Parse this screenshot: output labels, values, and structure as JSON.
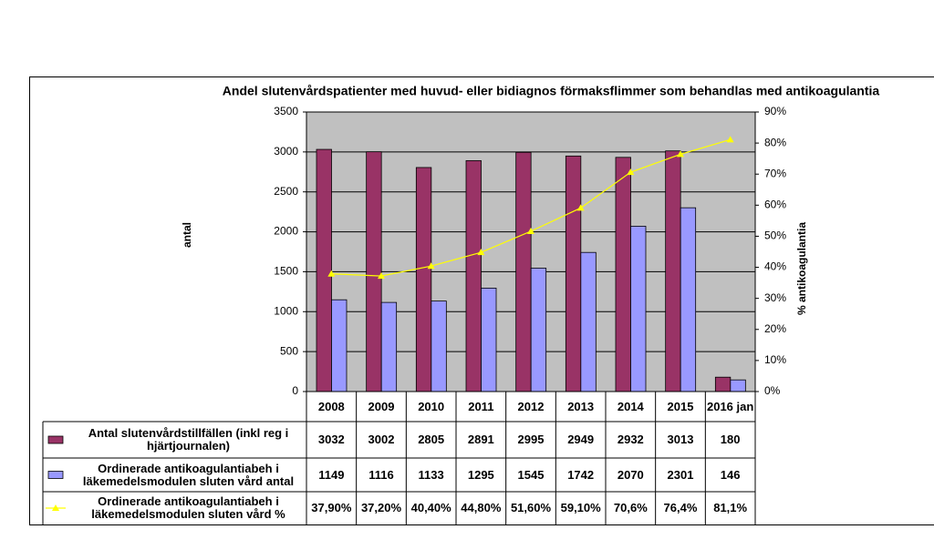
{
  "chart_data": {
    "type": "bar",
    "title": "Andel slutenvårdspatienter med huvud- eller bidiagnos förmaksflimmer som behandlas med antikoagulantia",
    "y_label": "antal",
    "y2_label": "% antikoagulantia",
    "categories": [
      "2008",
      "2009",
      "2010",
      "2011",
      "2012",
      "2013",
      "2014",
      "2015",
      "2016 jan"
    ],
    "series": [
      {
        "name": "Antal slutenvårdstillfällen (inkl reg i hjärtjournalen)",
        "type": "bar",
        "color": "#993366",
        "values": [
          3032,
          3002,
          2805,
          2891,
          2995,
          2949,
          2932,
          3013,
          180
        ]
      },
      {
        "name": "Ordinerade antikoagulantiabeh i läkemedelsmodulen sluten vård antal",
        "type": "bar",
        "color": "#9999ff",
        "values": [
          1149,
          1116,
          1133,
          1295,
          1545,
          1742,
          2070,
          2301,
          146
        ]
      },
      {
        "name": "Ordinerade antikoagulantiabeh i läkemedelsmodulen sluten vård %",
        "type": "line",
        "color": "#ffff00",
        "axis": "y2",
        "values": [
          37.9,
          37.2,
          40.4,
          44.8,
          51.6,
          59.1,
          70.6,
          76.4,
          81.1
        ],
        "value_labels": [
          "37,90%",
          "37,20%",
          "40,40%",
          "44,80%",
          "51,60%",
          "59,10%",
          "70,6%",
          "76,4%",
          "81,1%"
        ]
      }
    ],
    "ylim": [
      0,
      3500
    ],
    "yticks": [
      0,
      500,
      1000,
      1500,
      2000,
      2500,
      3000,
      3500
    ],
    "y2lim": [
      0,
      90
    ],
    "y2ticks": [
      {
        "value": 0,
        "label": "0%"
      },
      {
        "value": 10,
        "label": "10%"
      },
      {
        "value": 20,
        "label": "20%"
      },
      {
        "value": 30,
        "label": "30%"
      },
      {
        "value": 40,
        "label": "40%"
      },
      {
        "value": 50,
        "label": "50%"
      },
      {
        "value": 60,
        "label": "60%"
      },
      {
        "value": 70,
        "label": "70%"
      },
      {
        "value": 80,
        "label": "80%"
      },
      {
        "value": 90,
        "label": "90%"
      }
    ],
    "grid": true,
    "plot_background": "#c0c0c0"
  }
}
